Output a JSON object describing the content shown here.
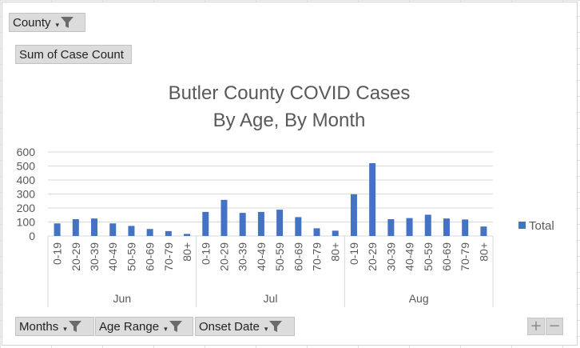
{
  "filters": {
    "county_label": "County",
    "measure_label": "Sum of Case Count",
    "axis_fields": [
      "Months",
      "Age Range",
      "Onset Date"
    ]
  },
  "zoom": {
    "plus": "+",
    "minus": "−"
  },
  "colors": {
    "bar": "#4472c4",
    "gridline": "#d9d9d9",
    "text": "#595959"
  },
  "icons": {
    "filter": "funnel-icon",
    "dropdown": "dropdown-arrow-icon"
  },
  "chart_data": {
    "type": "bar",
    "title_lines": [
      "Butler County COVID Cases",
      "By Age, By Month"
    ],
    "ylim": [
      0,
      600
    ],
    "yticks": [
      0,
      100,
      200,
      300,
      400,
      500,
      600
    ],
    "legend": "Total",
    "legend_position": "right",
    "grid": true,
    "groups": [
      {
        "name": "Jun",
        "categories": [
          "0-19",
          "20-29",
          "30-39",
          "40-49",
          "50-59",
          "60-69",
          "70-79",
          "80+"
        ],
        "values": [
          90,
          120,
          125,
          90,
          72,
          50,
          35,
          15
        ]
      },
      {
        "name": "Jul",
        "categories": [
          "0-19",
          "20-29",
          "30-39",
          "40-49",
          "50-59",
          "60-69",
          "70-79",
          "80+"
        ],
        "values": [
          172,
          258,
          165,
          172,
          188,
          135,
          55,
          38
        ]
      },
      {
        "name": "Aug",
        "categories": [
          "0-19",
          "20-29",
          "30-39",
          "40-49",
          "50-59",
          "60-69",
          "70-79",
          "80+"
        ],
        "values": [
          298,
          520,
          120,
          128,
          152,
          125,
          118,
          68
        ]
      }
    ]
  }
}
